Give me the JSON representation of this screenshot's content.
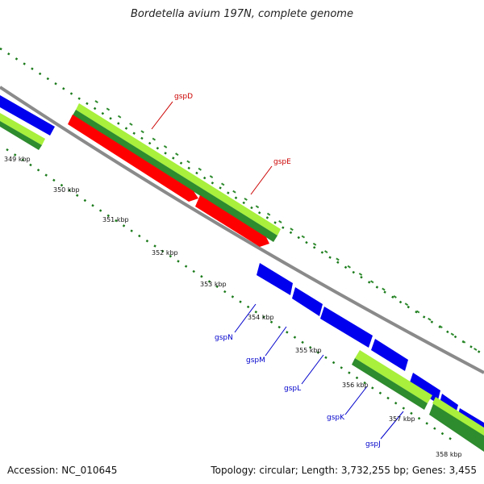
{
  "title": "Bordetella avium 197N, complete genome",
  "accession": "Accession: NC_010645",
  "topology": "Topology: circular; Length: 3,732,255 bp; Genes: 3,455",
  "colors": {
    "backbone": "#8a8a8a",
    "forward_light": "#a8f03c",
    "forward_dark": "#2e8b2e",
    "red_gene": "#ff0000",
    "blue_gene": "#0000ee",
    "dots": "#1a7a1a",
    "label_red": "#cc0000",
    "label_blue": "#0000cc"
  },
  "ticks": [
    "349 kbp",
    "350 kbp",
    "351 kbp",
    "352 kbp",
    "353 kbp",
    "354 kbp",
    "355 kbp",
    "356 kbp",
    "357 kbp",
    "358 kbp"
  ],
  "gene_labels": [
    {
      "name": "gspD",
      "color": "red"
    },
    {
      "name": "gspE",
      "color": "red"
    },
    {
      "name": "gspN",
      "color": "blue"
    },
    {
      "name": "gspM",
      "color": "blue"
    },
    {
      "name": "gspL",
      "color": "blue"
    },
    {
      "name": "gspK",
      "color": "blue"
    },
    {
      "name": "gspJ",
      "color": "blue"
    }
  ]
}
